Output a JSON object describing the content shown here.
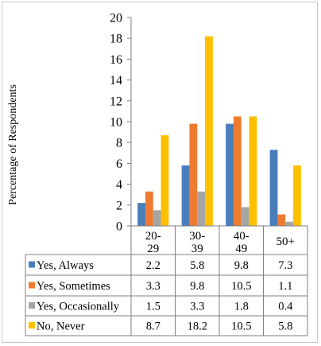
{
  "chart_data": {
    "type": "bar",
    "ylabel": "Percentage of Respondents",
    "ylim": [
      0,
      20
    ],
    "yticks": [
      0,
      2,
      4,
      6,
      8,
      10,
      12,
      14,
      16,
      18,
      20
    ],
    "categories": [
      {
        "line1": "20-",
        "line2": "29"
      },
      {
        "line1": "30-",
        "line2": "39"
      },
      {
        "line1": "40-",
        "line2": "49"
      },
      {
        "line1": "50+",
        "line2": ""
      }
    ],
    "series": [
      {
        "name": "Yes, Always",
        "color": "#4a7ebb",
        "values": [
          2.2,
          5.8,
          9.8,
          7.3
        ],
        "labels": [
          "2.2",
          "5.8",
          "9.8",
          "7.3"
        ]
      },
      {
        "name": "Yes, Sometimes",
        "color": "#ee7b30",
        "values": [
          3.3,
          9.8,
          10.5,
          1.1
        ],
        "labels": [
          "3.3",
          "9.8",
          "10.5",
          "1.1"
        ]
      },
      {
        "name": "Yes, Occasionally",
        "color": "#a5a5a5",
        "values": [
          1.5,
          3.3,
          1.8,
          0.4
        ],
        "labels": [
          "1.5",
          "3.3",
          "1.8",
          "0.4"
        ]
      },
      {
        "name": "No, Never",
        "color": "#ffc000",
        "values": [
          8.7,
          18.2,
          10.5,
          5.8
        ],
        "labels": [
          "8.7",
          "18.2",
          "10.5",
          "5.8"
        ]
      }
    ],
    "grid": false,
    "legend": "data table below chart"
  }
}
